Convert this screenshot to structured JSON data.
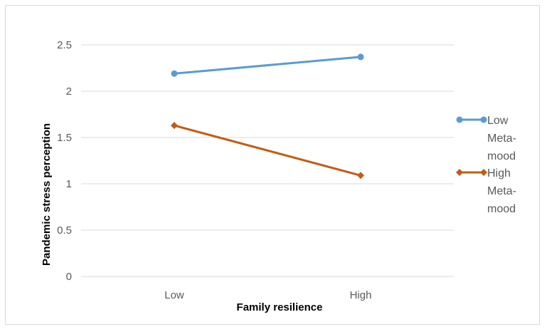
{
  "chart_data": {
    "type": "line",
    "title": "",
    "xlabel": "Family resilience",
    "ylabel": "Pandemic stress  perception",
    "categories": [
      "Low",
      "High"
    ],
    "ylim": [
      0,
      2.5
    ],
    "yticks": [
      "0",
      "0.5",
      "1",
      "1.5",
      "2",
      "2.5"
    ],
    "grid": true,
    "legend_position": "right",
    "series": [
      {
        "name": "Low Meta-mood",
        "legend_lines": [
          "Low",
          "Meta-",
          "mood"
        ],
        "values": [
          2.19,
          2.37
        ],
        "color": "#5b9bd5",
        "marker": "circle"
      },
      {
        "name": "High Meta-mood",
        "legend_lines": [
          "High",
          "Meta-",
          "mood"
        ],
        "values": [
          1.63,
          1.09
        ],
        "color": "#c55a11",
        "marker": "diamond"
      }
    ]
  }
}
